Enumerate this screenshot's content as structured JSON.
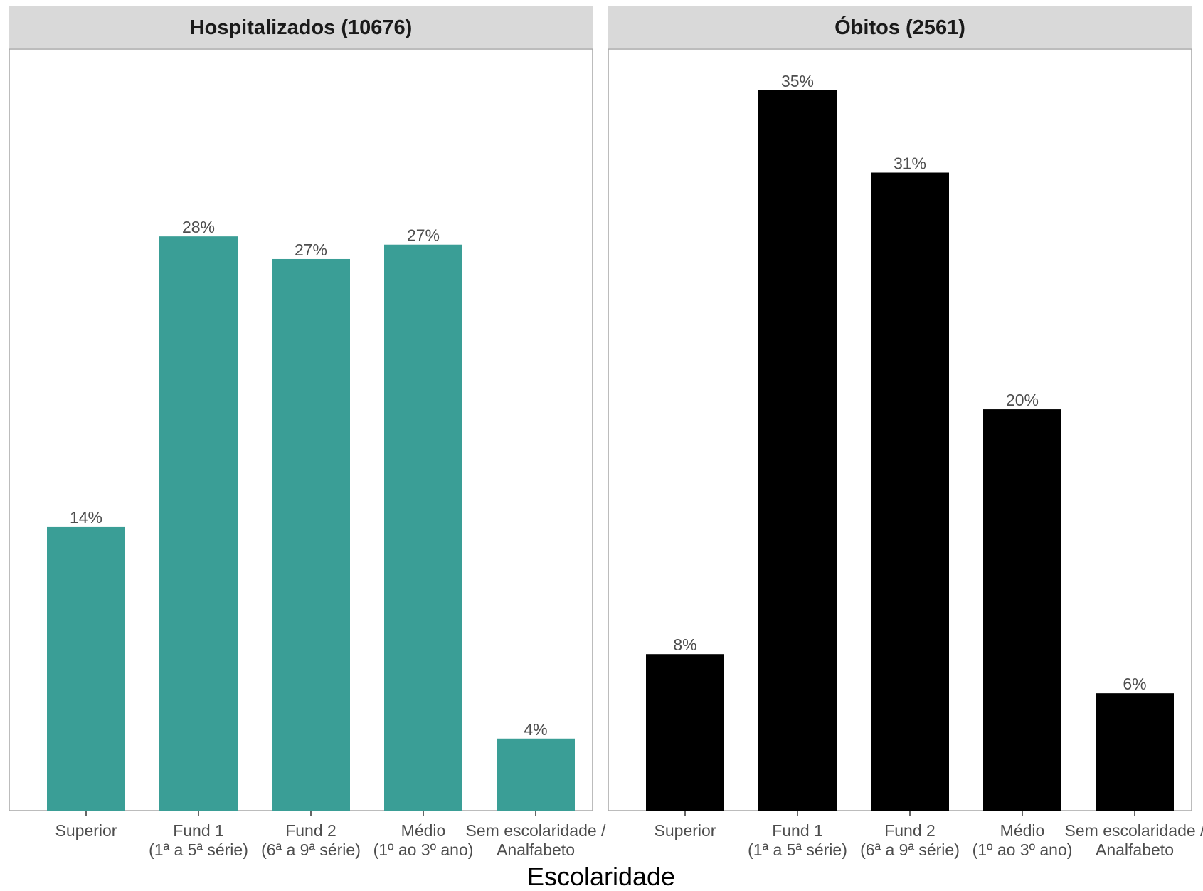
{
  "chart_data": {
    "type": "bar",
    "xlabel": "Escolaridade",
    "ylabel": "",
    "ylim": [
      0,
      37
    ],
    "grid": false,
    "legend": "none",
    "categories": [
      [
        "Superior"
      ],
      [
        "Fund 1",
        "(1ª a 5ª série)"
      ],
      [
        "Fund 2",
        "(6ª a 9ª série)"
      ],
      [
        "Médio",
        "(1º ao 3º ano)"
      ],
      [
        "Sem escolaridade /",
        "Analfabeto"
      ]
    ],
    "panels": [
      {
        "title": "Hospitalizados (10676)",
        "color": "#3a9e96",
        "values": [
          14,
          28,
          27,
          27,
          4
        ],
        "label_values": [
          13.8,
          27.9,
          26.8,
          27.5,
          3.5
        ],
        "labels": [
          "14%",
          "28%",
          "27%",
          "27%",
          "4%"
        ]
      },
      {
        "title": "Óbitos (2561)",
        "color": "#000000",
        "values": [
          8,
          35,
          31,
          20,
          6
        ],
        "label_values": [
          7.6,
          35.0,
          31.0,
          19.5,
          5.7
        ],
        "labels": [
          "8%",
          "35%",
          "31%",
          "20%",
          "6%"
        ]
      }
    ]
  }
}
